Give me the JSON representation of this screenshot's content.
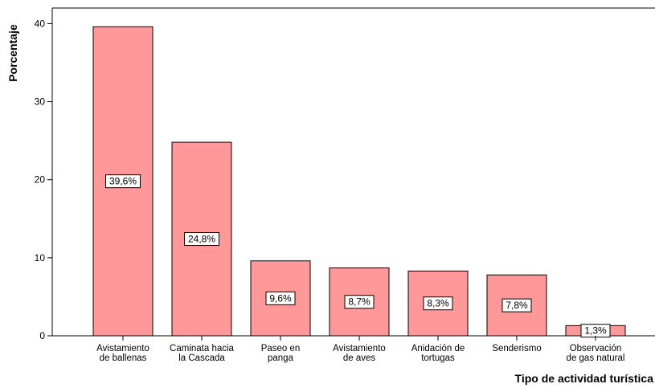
{
  "chart_data": {
    "type": "bar",
    "title": "",
    "xlabel": "Tipo de actividad turística",
    "ylabel": "Porcentaje",
    "ylim": [
      0,
      42
    ],
    "yticks": [
      0,
      10,
      20,
      30,
      40
    ],
    "grid": false,
    "bar_color": "#ff9999",
    "categories": [
      [
        "Avistamiento",
        "de ballenas"
      ],
      [
        "Caminata hacia",
        "la Cascada"
      ],
      [
        "Paseo en",
        "panga"
      ],
      [
        "Avistamiento",
        "de aves"
      ],
      [
        "Anidación de",
        "tortugas"
      ],
      [
        "Senderismo"
      ],
      [
        "Observación",
        "de gas natural"
      ]
    ],
    "values": [
      39.6,
      24.8,
      9.6,
      8.7,
      8.3,
      7.8,
      1.3
    ],
    "data_labels": [
      "39,6%",
      "24,8%",
      "9,6%",
      "8,7%",
      "8,3%",
      "7,8%",
      "1,3%"
    ]
  }
}
